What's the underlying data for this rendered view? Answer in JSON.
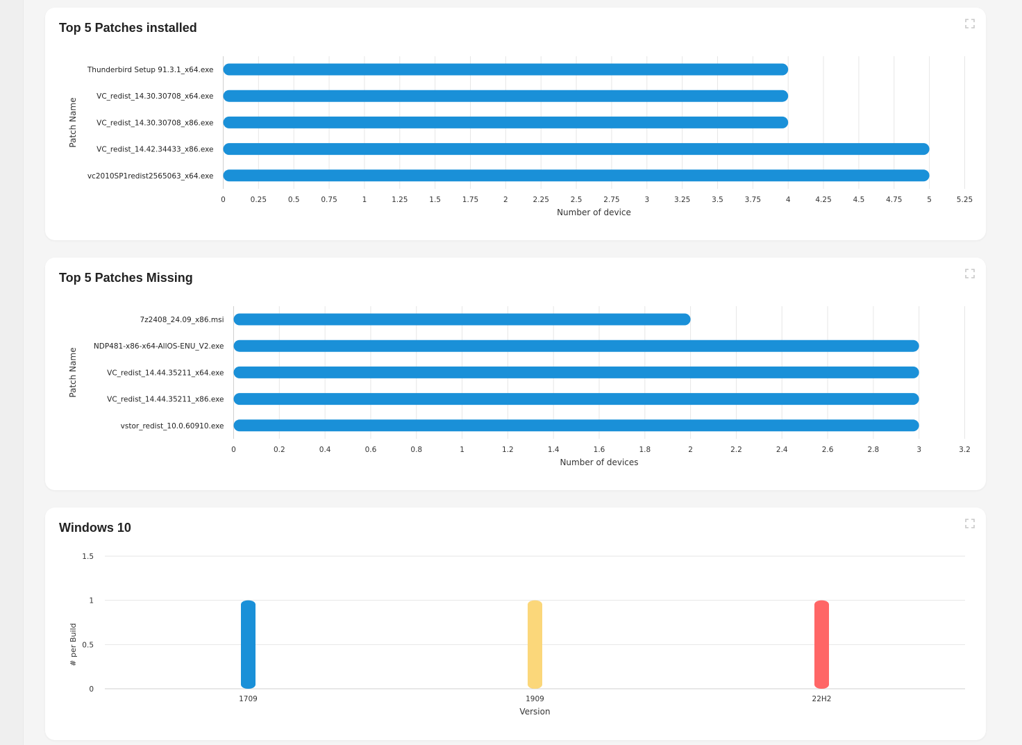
{
  "cards": [
    {
      "title": "Top 5 Patches installed",
      "expand_icon": "expand-icon",
      "chart_data": {
        "type": "bar",
        "orientation": "horizontal",
        "categories": [
          "Thunderbird Setup 91.3.1_x64.exe",
          "VC_redist_14.30.30708_x64.exe",
          "VC_redist_14.30.30708_x86.exe",
          "VC_redist_14.42.34433_x86.exe",
          "vc2010SP1redist2565063_x64.exe"
        ],
        "values": [
          4,
          4,
          4,
          5,
          5
        ],
        "xlabel": "Number of device",
        "ylabel": "Patch Name",
        "xticks": [
          "0",
          "0.25",
          "0.5",
          "0.75",
          "1",
          "1.25",
          "1.5",
          "1.75",
          "2",
          "2.25",
          "2.5",
          "2.75",
          "3",
          "3.25",
          "3.5",
          "3.75",
          "4",
          "4.25",
          "4.5",
          "4.75",
          "5",
          "5.25"
        ],
        "xlim": [
          0,
          5.25
        ],
        "grid": true,
        "color": "#1a90d8"
      }
    },
    {
      "title": "Top 5 Patches Missing",
      "expand_icon": "expand-icon",
      "chart_data": {
        "type": "bar",
        "orientation": "horizontal",
        "categories": [
          "7z2408_24.09_x86.msi",
          "NDP481-x86-x64-AllOS-ENU_V2.exe",
          "VC_redist_14.44.35211_x64.exe",
          "VC_redist_14.44.35211_x86.exe",
          "vstor_redist_10.0.60910.exe"
        ],
        "values": [
          2,
          3,
          3,
          3,
          3
        ],
        "xlabel": "Number of devices",
        "ylabel": "Patch Name",
        "xticks": [
          "0",
          "0.2",
          "0.4",
          "0.6",
          "0.8",
          "1",
          "1.2",
          "1.4",
          "1.6",
          "1.8",
          "2",
          "2.2",
          "2.4",
          "2.6",
          "2.8",
          "3",
          "3.2"
        ],
        "xlim": [
          0,
          3.2
        ],
        "grid": true,
        "color": "#1a90d8"
      }
    },
    {
      "title": "Windows 10",
      "expand_icon": "expand-icon",
      "chart_data": {
        "type": "bar",
        "orientation": "vertical",
        "categories": [
          "1709",
          "1909",
          "22H2"
        ],
        "values": [
          1,
          1,
          1
        ],
        "colors": [
          "#1a90d8",
          "#fbd77a",
          "#ff6666"
        ],
        "xlabel": "Version",
        "ylabel": "# per Build",
        "yticks": [
          "0",
          "0.5",
          "1",
          "1.5"
        ],
        "ylim": [
          0,
          1.5
        ],
        "grid": true
      }
    }
  ]
}
